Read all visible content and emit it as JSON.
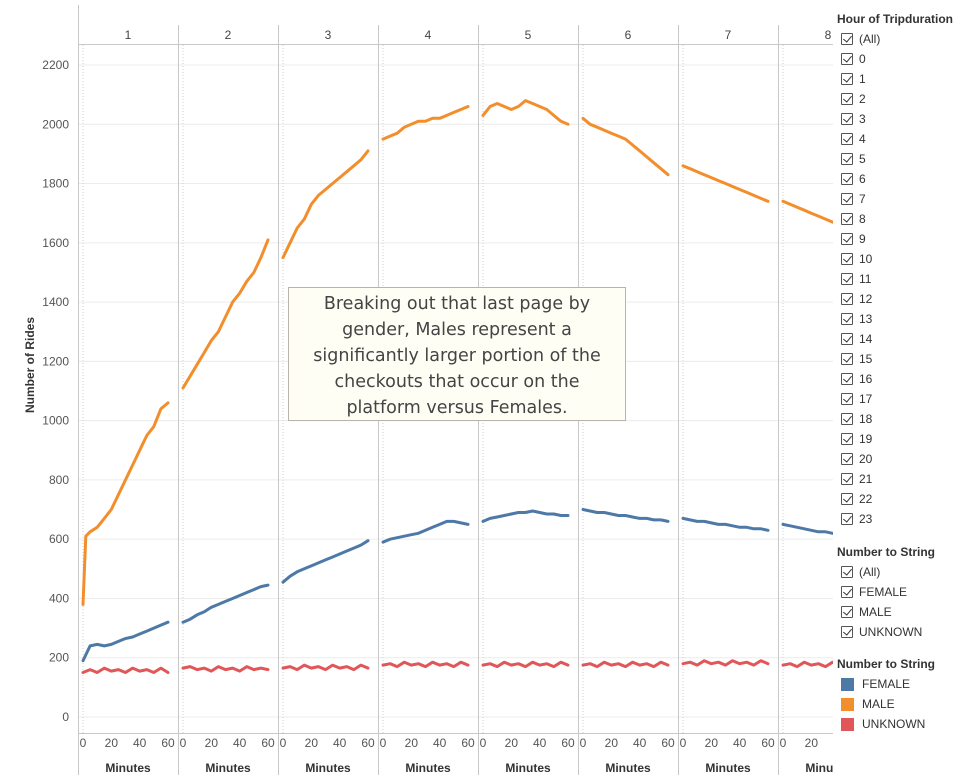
{
  "chart_data": {
    "type": "line",
    "columns": [
      "1",
      "2",
      "3",
      "4",
      "5",
      "6",
      "7",
      "8"
    ],
    "x_tick_labels": [
      "0",
      "20",
      "40",
      "60"
    ],
    "x_axis_label": "Minutes",
    "xlim": [
      0,
      60
    ],
    "y_axis_label": "Number of Rides",
    "ylim": [
      0,
      2250
    ],
    "y_ticks": [
      0,
      200,
      400,
      600,
      800,
      1000,
      1200,
      1400,
      1600,
      1800,
      2000,
      2200
    ],
    "series": [
      {
        "name": "MALE",
        "color": "#f28e2b",
        "panels": [
          {
            "x": [
              0,
              2,
              5,
              10,
              15,
              20,
              25,
              30,
              35,
              40,
              45,
              50,
              55,
              60
            ],
            "y": [
              380,
              610,
              625,
              640,
              670,
              700,
              750,
              800,
              850,
              900,
              950,
              980,
              1040,
              1060
            ]
          },
          {
            "x": [
              0,
              5,
              10,
              15,
              20,
              25,
              30,
              35,
              40,
              45,
              50,
              55,
              60
            ],
            "y": [
              1110,
              1150,
              1190,
              1230,
              1270,
              1300,
              1350,
              1400,
              1430,
              1470,
              1500,
              1550,
              1610
            ]
          },
          {
            "x": [
              0,
              5,
              10,
              15,
              20,
              25,
              30,
              35,
              40,
              45,
              50,
              55,
              60
            ],
            "y": [
              1550,
              1600,
              1650,
              1680,
              1730,
              1760,
              1780,
              1800,
              1820,
              1840,
              1860,
              1880,
              1910
            ]
          },
          {
            "x": [
              0,
              5,
              10,
              15,
              20,
              25,
              30,
              35,
              40,
              45,
              50,
              55,
              60
            ],
            "y": [
              1950,
              1960,
              1970,
              1990,
              2000,
              2010,
              2010,
              2020,
              2020,
              2030,
              2040,
              2050,
              2060
            ]
          },
          {
            "x": [
              0,
              5,
              10,
              15,
              20,
              25,
              30,
              35,
              40,
              45,
              50,
              55,
              60
            ],
            "y": [
              2030,
              2060,
              2070,
              2060,
              2050,
              2060,
              2080,
              2070,
              2060,
              2050,
              2030,
              2010,
              2000
            ]
          },
          {
            "x": [
              0,
              5,
              10,
              15,
              20,
              25,
              30,
              35,
              40,
              45,
              50,
              55,
              60
            ],
            "y": [
              2020,
              2000,
              1990,
              1980,
              1970,
              1960,
              1950,
              1930,
              1910,
              1890,
              1870,
              1850,
              1830
            ]
          },
          {
            "x": [
              0,
              5,
              10,
              15,
              20,
              25,
              30,
              35,
              40,
              45,
              50,
              55,
              60
            ],
            "y": [
              1860,
              1850,
              1840,
              1830,
              1820,
              1810,
              1800,
              1790,
              1780,
              1770,
              1760,
              1750,
              1740
            ]
          },
          {
            "x": [
              0,
              5,
              10,
              15,
              20,
              25,
              30,
              35,
              40,
              45,
              50
            ],
            "y": [
              1740,
              1730,
              1720,
              1710,
              1700,
              1690,
              1680,
              1670,
              1660,
              1650,
              1640
            ]
          }
        ]
      },
      {
        "name": "FEMALE",
        "color": "#4e79a7",
        "panels": [
          {
            "x": [
              0,
              5,
              10,
              15,
              20,
              25,
              30,
              35,
              40,
              45,
              50,
              55,
              60
            ],
            "y": [
              190,
              240,
              245,
              240,
              245,
              255,
              265,
              270,
              280,
              290,
              300,
              310,
              320
            ]
          },
          {
            "x": [
              0,
              5,
              10,
              15,
              20,
              25,
              30,
              35,
              40,
              45,
              50,
              55,
              60
            ],
            "y": [
              320,
              330,
              345,
              355,
              370,
              380,
              390,
              400,
              410,
              420,
              430,
              440,
              445
            ]
          },
          {
            "x": [
              0,
              5,
              10,
              15,
              20,
              25,
              30,
              35,
              40,
              45,
              50,
              55,
              60
            ],
            "y": [
              455,
              475,
              490,
              500,
              510,
              520,
              530,
              540,
              550,
              560,
              570,
              580,
              595
            ]
          },
          {
            "x": [
              0,
              5,
              10,
              15,
              20,
              25,
              30,
              35,
              40,
              45,
              50,
              55,
              60
            ],
            "y": [
              590,
              600,
              605,
              610,
              615,
              620,
              630,
              640,
              650,
              660,
              660,
              655,
              650
            ]
          },
          {
            "x": [
              0,
              5,
              10,
              15,
              20,
              25,
              30,
              35,
              40,
              45,
              50,
              55,
              60
            ],
            "y": [
              660,
              670,
              675,
              680,
              685,
              690,
              690,
              695,
              690,
              685,
              685,
              680,
              680
            ]
          },
          {
            "x": [
              0,
              5,
              10,
              15,
              20,
              25,
              30,
              35,
              40,
              45,
              50,
              55,
              60
            ],
            "y": [
              700,
              695,
              690,
              690,
              685,
              680,
              680,
              675,
              670,
              670,
              665,
              665,
              660
            ]
          },
          {
            "x": [
              0,
              5,
              10,
              15,
              20,
              25,
              30,
              35,
              40,
              45,
              50,
              55,
              60
            ],
            "y": [
              670,
              665,
              660,
              660,
              655,
              650,
              650,
              645,
              640,
              640,
              635,
              635,
              630
            ]
          },
          {
            "x": [
              0,
              5,
              10,
              15,
              20,
              25,
              30,
              35,
              40,
              45,
              50
            ],
            "y": [
              650,
              645,
              640,
              635,
              630,
              625,
              625,
              620,
              615,
              610,
              605
            ]
          }
        ]
      },
      {
        "name": "UNKNOWN",
        "color": "#e15759",
        "panels": [
          {
            "x": [
              0,
              5,
              10,
              15,
              20,
              25,
              30,
              35,
              40,
              45,
              50,
              55,
              60
            ],
            "y": [
              150,
              160,
              150,
              165,
              155,
              160,
              150,
              165,
              155,
              160,
              150,
              165,
              150
            ]
          },
          {
            "x": [
              0,
              5,
              10,
              15,
              20,
              25,
              30,
              35,
              40,
              45,
              50,
              55,
              60
            ],
            "y": [
              165,
              170,
              160,
              165,
              155,
              170,
              160,
              165,
              155,
              170,
              160,
              165,
              160
            ]
          },
          {
            "x": [
              0,
              5,
              10,
              15,
              20,
              25,
              30,
              35,
              40,
              45,
              50,
              55,
              60
            ],
            "y": [
              165,
              170,
              160,
              175,
              165,
              170,
              160,
              175,
              165,
              170,
              160,
              175,
              165
            ]
          },
          {
            "x": [
              0,
              5,
              10,
              15,
              20,
              25,
              30,
              35,
              40,
              45,
              50,
              55,
              60
            ],
            "y": [
              175,
              180,
              170,
              185,
              175,
              180,
              170,
              185,
              175,
              180,
              170,
              185,
              175
            ]
          },
          {
            "x": [
              0,
              5,
              10,
              15,
              20,
              25,
              30,
              35,
              40,
              45,
              50,
              55,
              60
            ],
            "y": [
              175,
              180,
              170,
              185,
              175,
              180,
              170,
              185,
              175,
              180,
              170,
              185,
              175
            ]
          },
          {
            "x": [
              0,
              5,
              10,
              15,
              20,
              25,
              30,
              35,
              40,
              45,
              50,
              55,
              60
            ],
            "y": [
              175,
              180,
              170,
              185,
              175,
              180,
              170,
              185,
              175,
              180,
              170,
              185,
              175
            ]
          },
          {
            "x": [
              0,
              5,
              10,
              15,
              20,
              25,
              30,
              35,
              40,
              45,
              50,
              55,
              60
            ],
            "y": [
              180,
              185,
              175,
              190,
              180,
              185,
              175,
              190,
              180,
              185,
              175,
              190,
              180
            ]
          },
          {
            "x": [
              0,
              5,
              10,
              15,
              20,
              25,
              30,
              35,
              40,
              45,
              50
            ],
            "y": [
              175,
              180,
              170,
              185,
              175,
              180,
              170,
              185,
              175,
              180,
              170
            ]
          }
        ]
      }
    ],
    "annotation": "Breaking out that last page by gender, Males represent a significantly larger portion of the checkouts that occur on the platform versus Females."
  },
  "filters": {
    "hour": {
      "title": "Hour of Tripduration",
      "items": [
        "(All)",
        "0",
        "1",
        "2",
        "3",
        "4",
        "5",
        "6",
        "7",
        "8",
        "9",
        "10",
        "11",
        "12",
        "13",
        "14",
        "15",
        "16",
        "17",
        "18",
        "19",
        "20",
        "21",
        "22",
        "23"
      ]
    },
    "gender": {
      "title": "Number to String",
      "items": [
        "(All)",
        "FEMALE",
        "MALE",
        "UNKNOWN"
      ]
    }
  },
  "legend": {
    "title": "Number to String",
    "items": [
      {
        "label": "FEMALE",
        "color": "#4e79a7"
      },
      {
        "label": "MALE",
        "color": "#f28e2b"
      },
      {
        "label": "UNKNOWN",
        "color": "#e15759"
      }
    ]
  }
}
